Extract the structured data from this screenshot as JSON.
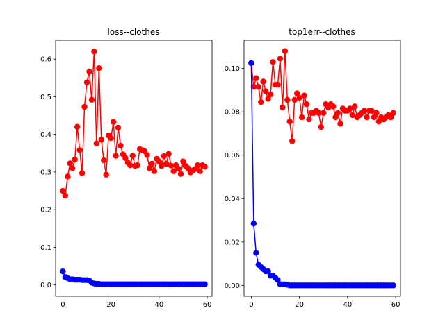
{
  "chart_data": [
    {
      "type": "line",
      "title": "loss--clothes",
      "xlim": [
        -3,
        62
      ],
      "ylim": [
        -0.03,
        0.65
      ],
      "xticks": [
        0,
        20,
        40,
        60
      ],
      "yticks": [
        0.0,
        0.1,
        0.2,
        0.3,
        0.4,
        0.5,
        0.6
      ],
      "xtick_labels": [
        "0",
        "20",
        "40",
        "60"
      ],
      "ytick_labels": [
        "0.0",
        "0.1",
        "0.2",
        "0.3",
        "0.4",
        "0.5",
        "0.6"
      ],
      "grid": false,
      "series": [
        {
          "color": "#ff0000",
          "marker": "circle",
          "x": [
            0,
            1,
            2,
            3,
            4,
            5,
            6,
            7,
            8,
            9,
            10,
            11,
            12,
            13,
            14,
            15,
            16,
            17,
            18,
            19,
            20,
            21,
            22,
            23,
            24,
            25,
            26,
            27,
            28,
            29,
            30,
            31,
            32,
            33,
            34,
            35,
            36,
            37,
            38,
            39,
            40,
            41,
            42,
            43,
            44,
            45,
            46,
            47,
            48,
            49,
            50,
            51,
            52,
            53,
            54,
            55,
            56,
            57,
            58,
            59
          ],
          "values": [
            0.25,
            0.237,
            0.288,
            0.323,
            0.31,
            0.333,
            0.42,
            0.358,
            0.297,
            0.473,
            0.538,
            0.567,
            0.492,
            0.62,
            0.376,
            0.576,
            0.386,
            0.331,
            0.293,
            0.397,
            0.39,
            0.433,
            0.343,
            0.418,
            0.37,
            0.347,
            0.337,
            0.325,
            0.318,
            0.343,
            0.316,
            0.318,
            0.361,
            0.358,
            0.355,
            0.345,
            0.31,
            0.322,
            0.302,
            0.335,
            0.328,
            0.316,
            0.342,
            0.322,
            0.348,
            0.317,
            0.302,
            0.318,
            0.309,
            0.295,
            0.328,
            0.316,
            0.31,
            0.299,
            0.304,
            0.308,
            0.318,
            0.302,
            0.318,
            0.314
          ]
        },
        {
          "color": "#0000ff",
          "marker": "circle",
          "x": [
            0,
            1,
            2,
            3,
            4,
            5,
            6,
            7,
            8,
            9,
            10,
            11,
            12,
            13,
            14,
            15,
            16,
            17,
            18,
            19,
            20,
            21,
            22,
            23,
            24,
            25,
            26,
            27,
            28,
            29,
            30,
            31,
            32,
            33,
            34,
            35,
            36,
            37,
            38,
            39,
            40,
            41,
            42,
            43,
            44,
            45,
            46,
            47,
            48,
            49,
            50,
            51,
            52,
            53,
            54,
            55,
            56,
            57,
            58,
            59
          ],
          "values": [
            0.036,
            0.021,
            0.018,
            0.015,
            0.015,
            0.014,
            0.014,
            0.014,
            0.013,
            0.013,
            0.013,
            0.012,
            0.006,
            0.004,
            0.003,
            0.003,
            0.002,
            0.002,
            0.002,
            0.002,
            0.002,
            0.002,
            0.002,
            0.002,
            0.002,
            0.002,
            0.002,
            0.002,
            0.002,
            0.002,
            0.002,
            0.002,
            0.002,
            0.002,
            0.002,
            0.002,
            0.002,
            0.002,
            0.002,
            0.002,
            0.002,
            0.002,
            0.002,
            0.002,
            0.002,
            0.002,
            0.002,
            0.002,
            0.002,
            0.002,
            0.002,
            0.002,
            0.002,
            0.002,
            0.002,
            0.002,
            0.002,
            0.002,
            0.002,
            0.002
          ]
        }
      ]
    },
    {
      "type": "line",
      "title": "top1err--clothes",
      "xlim": [
        -3,
        62
      ],
      "ylim": [
        -0.005,
        0.113
      ],
      "xticks": [
        0,
        20,
        40,
        60
      ],
      "yticks": [
        0.0,
        0.02,
        0.04,
        0.06,
        0.08,
        0.1
      ],
      "xtick_labels": [
        "0",
        "20",
        "40",
        "60"
      ],
      "ytick_labels": [
        "0.00",
        "0.02",
        "0.04",
        "0.06",
        "0.08",
        "0.10"
      ],
      "grid": false,
      "series": [
        {
          "color": "#ff0000",
          "marker": "circle",
          "x": [
            0,
            1,
            2,
            3,
            4,
            5,
            6,
            7,
            8,
            9,
            10,
            11,
            12,
            13,
            14,
            15,
            16,
            17,
            18,
            19,
            20,
            21,
            22,
            23,
            24,
            25,
            26,
            27,
            28,
            29,
            30,
            31,
            32,
            33,
            34,
            35,
            36,
            37,
            38,
            39,
            40,
            41,
            42,
            43,
            44,
            45,
            46,
            47,
            48,
            49,
            50,
            51,
            52,
            53,
            54,
            55,
            56,
            57,
            58,
            59
          ],
          "values": [
            0.1025,
            0.0915,
            0.0955,
            0.0915,
            0.0845,
            0.094,
            0.0895,
            0.086,
            0.088,
            0.103,
            0.0925,
            0.0925,
            0.1045,
            0.082,
            0.108,
            0.0855,
            0.0755,
            0.0665,
            0.0855,
            0.0885,
            0.0865,
            0.0775,
            0.0875,
            0.0835,
            0.0765,
            0.0795,
            0.0795,
            0.0805,
            0.0795,
            0.073,
            0.0795,
            0.0835,
            0.082,
            0.0835,
            0.0825,
            0.0775,
            0.0795,
            0.0745,
            0.0815,
            0.0805,
            0.0805,
            0.0815,
            0.0785,
            0.0825,
            0.0775,
            0.0785,
            0.0795,
            0.0805,
            0.0775,
            0.0805,
            0.0805,
            0.0775,
            0.0795,
            0.0755,
            0.0775,
            0.0765,
            0.0775,
            0.0785,
            0.0775,
            0.0795
          ]
        },
        {
          "color": "#0000ff",
          "marker": "circle",
          "x": [
            0,
            1,
            2,
            3,
            4,
            5,
            6,
            7,
            8,
            9,
            10,
            11,
            12,
            13,
            14,
            15,
            16,
            17,
            18,
            19,
            20,
            21,
            22,
            23,
            24,
            25,
            26,
            27,
            28,
            29,
            30,
            31,
            32,
            33,
            34,
            35,
            36,
            37,
            38,
            39,
            40,
            41,
            42,
            43,
            44,
            45,
            46,
            47,
            48,
            49,
            50,
            51,
            52,
            53,
            54,
            55,
            56,
            57,
            58,
            59
          ],
          "values": [
            0.1025,
            0.0285,
            0.015,
            0.0095,
            0.0085,
            0.0075,
            0.0065,
            0.0065,
            0.0045,
            0.0045,
            0.0035,
            0.0025,
            0.0005,
            0.0005,
            0.0005,
            0.0003,
            0.0,
            0.0,
            0.0,
            0.0,
            0.0,
            0.0,
            0.0,
            0.0,
            0.0,
            0.0,
            0.0,
            0.0,
            0.0,
            0.0,
            0.0,
            0.0,
            0.0,
            0.0,
            0.0,
            0.0,
            0.0,
            0.0,
            0.0,
            0.0,
            0.0,
            0.0,
            0.0,
            0.0,
            0.0,
            0.0,
            0.0,
            0.0,
            0.0,
            0.0,
            0.0,
            0.0,
            0.0,
            0.0,
            0.0,
            0.0,
            0.0,
            0.0,
            0.0,
            0.0
          ]
        }
      ]
    }
  ]
}
